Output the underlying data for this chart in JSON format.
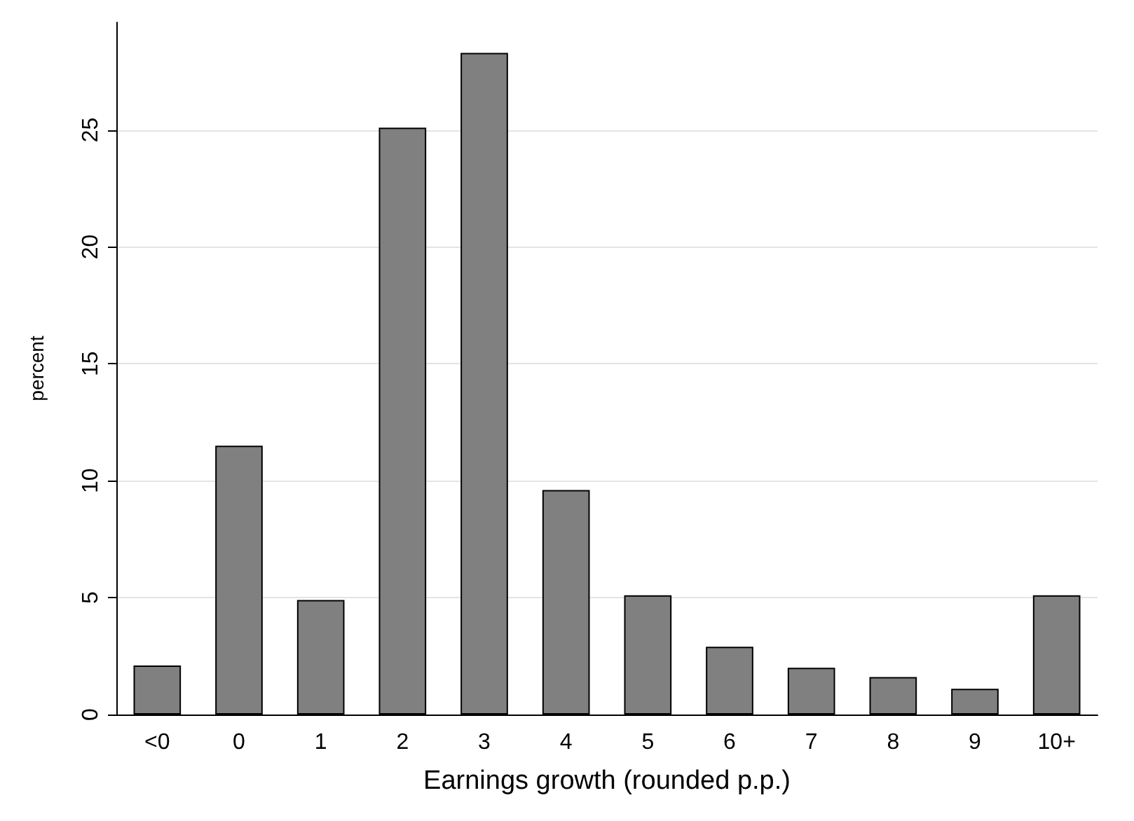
{
  "chart_data": {
    "type": "bar",
    "xlabel": "Earnings growth (rounded p.p.)",
    "ylabel": "percent",
    "categories": [
      "<0",
      "0",
      "1",
      "2",
      "3",
      "4",
      "5",
      "6",
      "7",
      "8",
      "9",
      "10+"
    ],
    "values": [
      2.1,
      11.5,
      4.9,
      25.1,
      28.3,
      9.6,
      5.1,
      2.9,
      2.0,
      1.6,
      1.1,
      5.1
    ],
    "color": "#808080",
    "ylim": [
      0,
      29.6
    ],
    "yticks": [
      0,
      5,
      10,
      15,
      20,
      25
    ],
    "grid": "y"
  }
}
